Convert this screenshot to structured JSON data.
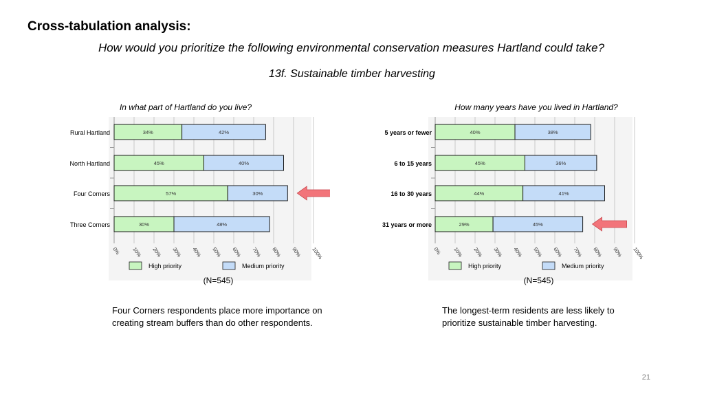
{
  "header": {
    "title": "Cross-tabulation analysis:",
    "question": "How would you prioritize the following environmental conservation measures Hartland could take?",
    "subquestion": "13f. Sustainable timber harvesting"
  },
  "chart_data": [
    {
      "type": "bar",
      "stacked": true,
      "orientation": "horizontal",
      "title": "In what part of Hartland do you live?",
      "categories": [
        "Rural Hartland",
        "North Hartland",
        "Four Corners",
        "Three Corners"
      ],
      "series": [
        {
          "name": "High priority",
          "values": [
            34,
            45,
            57,
            30
          ],
          "labels": [
            "34%",
            "45%",
            "57%",
            "30%"
          ],
          "color": "#c8f5c0"
        },
        {
          "name": "Medium priority",
          "values": [
            42,
            40,
            30,
            48
          ],
          "labels": [
            "42%",
            "40%",
            "30%",
            "48%"
          ],
          "color": "#c4dcf8"
        }
      ],
      "xlim": [
        0,
        100
      ],
      "xticks": [
        "0%",
        "10%",
        "20%",
        "30%",
        "40%",
        "50%",
        "60%",
        "70%",
        "80%",
        "90%",
        "100%"
      ],
      "category_bold": false,
      "highlight_arrow_category": "Four Corners",
      "sample_size": "(N=545)",
      "legend": "bottom"
    },
    {
      "type": "bar",
      "stacked": true,
      "orientation": "horizontal",
      "title": "How many years have you lived in Hartland?",
      "categories": [
        "5 years or fewer",
        "6 to 15 years",
        "16 to 30 years",
        "31 years or more"
      ],
      "series": [
        {
          "name": "High priority",
          "values": [
            40,
            45,
            44,
            29
          ],
          "labels": [
            "40%",
            "45%",
            "44%",
            "29%"
          ],
          "color": "#c8f5c0"
        },
        {
          "name": "Medium priority",
          "values": [
            38,
            36,
            41,
            45
          ],
          "labels": [
            "38%",
            "36%",
            "41%",
            "45%"
          ],
          "color": "#c4dcf8"
        }
      ],
      "xlim": [
        0,
        100
      ],
      "xticks": [
        "0%",
        "10%",
        "20%",
        "30%",
        "40%",
        "50%",
        "60%",
        "70%",
        "80%",
        "90%",
        "100%"
      ],
      "category_bold": true,
      "highlight_arrow_category": "31 years or more",
      "sample_size": "(N=545)",
      "legend": "bottom"
    }
  ],
  "notes": {
    "left": "Four Corners respondents place more importance on creating stream buffers than do other respondents.",
    "right": "The longest-term residents are less likely to prioritize sustainable timber harvesting."
  },
  "page_number": "21",
  "colors": {
    "high": "#c8f5c0",
    "medium": "#c4dcf8",
    "bar_border": "#1a1a1a",
    "arrow": "#f2747a",
    "panel_bg": "#f4f4f4"
  }
}
